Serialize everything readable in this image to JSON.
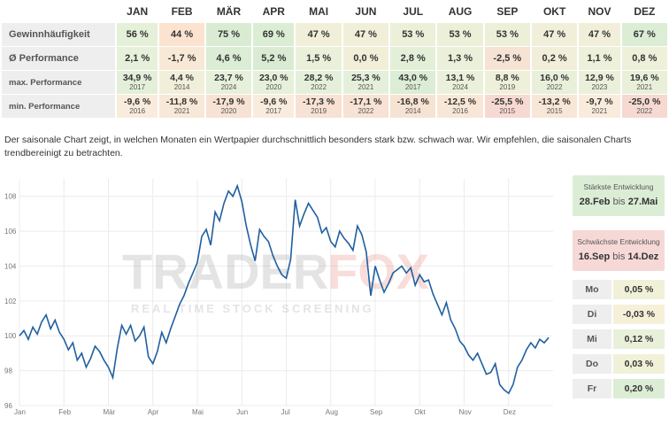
{
  "months": [
    "JAN",
    "FEB",
    "MÄR",
    "APR",
    "MAI",
    "JUN",
    "JUL",
    "AUG",
    "SEP",
    "OKT",
    "NOV",
    "DEZ"
  ],
  "rows": [
    {
      "label": "Gewinnhäufigkeit",
      "values": [
        "56 %",
        "44 %",
        "75 %",
        "69 %",
        "47 %",
        "47 %",
        "53 %",
        "53 %",
        "53 %",
        "47 %",
        "47 %",
        "67 %"
      ],
      "colors": [
        "#e5f0d9",
        "#fbe3cf",
        "#d9ecd3",
        "#dbedd4",
        "#f1efd9",
        "#f1efd9",
        "#ecf0d9",
        "#ecf0d9",
        "#ecf0d9",
        "#f1efd9",
        "#f1efd9",
        "#dcedd6"
      ]
    },
    {
      "label": "Ø Performance",
      "values": [
        "2,1 %",
        "-1,7 %",
        "4,6 %",
        "5,2 %",
        "1,5 %",
        "0,0 %",
        "2,8 %",
        "1,3 %",
        "-2,5 %",
        "0,2 %",
        "1,1 %",
        "0,8 %"
      ],
      "colors": [
        "#e7f0da",
        "#f8e9d6",
        "#dbedd4",
        "#d9ecd3",
        "#ebf0da",
        "#f2efd9",
        "#e4efd8",
        "#ebf0da",
        "#f7e3d4",
        "#f1efd9",
        "#edf0da",
        "#eff0da"
      ]
    },
    {
      "label": "max. Performance",
      "values": [
        "34,9 %",
        "4,4 %",
        "23,7 %",
        "23,0 %",
        "28,2 %",
        "25,3 %",
        "43,0 %",
        "13,1 %",
        "8,8 %",
        "16,0 %",
        "12,9 %",
        "19,6 %"
      ],
      "years": [
        "2017",
        "2014",
        "2024",
        "2020",
        "2022",
        "2021",
        "2017",
        "2024",
        "2019",
        "2022",
        "2023",
        "2021"
      ],
      "colors": [
        "#e3efd9",
        "#f1efd9",
        "#e6f0da",
        "#e6f0da",
        "#e5f0da",
        "#e5f0da",
        "#dbedd4",
        "#ebf0da",
        "#eef0da",
        "#e9f0da",
        "#ebf0da",
        "#e8f0da"
      ]
    },
    {
      "label": "min. Performance",
      "values": [
        "-9,6 %",
        "-11,8 %",
        "-17,9 %",
        "-9,6 %",
        "-17,3 %",
        "-17,1 %",
        "-16,8 %",
        "-12,5 %",
        "-25,5 %",
        "-13,2 %",
        "-9,7 %",
        "-25,0 %"
      ],
      "years": [
        "2016",
        "2021",
        "2020",
        "2017",
        "2019",
        "2022",
        "2014",
        "2016",
        "2015",
        "2015",
        "2021",
        "2022"
      ],
      "colors": [
        "#f9ecdc",
        "#f8e8d8",
        "#f7e2d4",
        "#f9ecdc",
        "#f7e2d4",
        "#f7e2d4",
        "#f7e3d4",
        "#f8e7d7",
        "#f6d9d1",
        "#f8e6d6",
        "#f9ecdc",
        "#f6d9d1"
      ]
    }
  ],
  "description": "Der saisonale Chart zeigt, in welchen Monaten ein Wertpapier durchschnittlich besonders stark bzw. schwach war. Wir empfehlen, die saisonalen Charts trendbereinigt zu betrachten.",
  "watermark": {
    "brand_left": "TRADER",
    "brand_right": "FOX",
    "tagline": "REAL TIME STOCK SCREENING"
  },
  "strongest": {
    "title": "Stärkste Entwicklung",
    "from": "28.Feb",
    "sep": "bis",
    "to": "27.Mai"
  },
  "weakest": {
    "title": "Schwächste Entwicklung",
    "from": "16.Sep",
    "sep": "bis",
    "to": "14.Dez"
  },
  "weekdays": [
    {
      "day": "Mo",
      "value": "0,05 %",
      "color": "#f1f1d9"
    },
    {
      "day": "Di",
      "value": "-0,03 %",
      "color": "#f6f0d9"
    },
    {
      "day": "Mi",
      "value": "0,12 %",
      "color": "#e9f0da"
    },
    {
      "day": "Do",
      "value": "0,03 %",
      "color": "#f1f1d9"
    },
    {
      "day": "Fr",
      "value": "0,20 %",
      "color": "#dcedd6"
    }
  ],
  "chart_data": {
    "type": "line",
    "x_ticks": [
      "Jan",
      "Feb",
      "Mär",
      "Apr",
      "Mai",
      "Jun",
      "Jul",
      "Aug",
      "Sep",
      "Okt",
      "Nov",
      "Dez"
    ],
    "y_ticks": [
      96,
      98,
      100,
      102,
      104,
      106,
      108
    ],
    "ylim": [
      96,
      109
    ],
    "grid": true,
    "line_color": "#1f5fa0",
    "series": [
      {
        "x_month": [
          0.0,
          0.1,
          0.2,
          0.3,
          0.4,
          0.5,
          0.6,
          0.7,
          0.8,
          0.9,
          1.0,
          1.1,
          1.2,
          1.3,
          1.4,
          1.5,
          1.6,
          1.7,
          1.8,
          1.9,
          2.0,
          2.1,
          2.2,
          2.3,
          2.4,
          2.5,
          2.6,
          2.7,
          2.8,
          2.9,
          3.0,
          3.1,
          3.2,
          3.3,
          3.4,
          3.5,
          3.6,
          3.7,
          3.8,
          3.9,
          4.0,
          4.1,
          4.2,
          4.3,
          4.4,
          4.5,
          4.6,
          4.7,
          4.8,
          4.9,
          5.0,
          5.1,
          5.2,
          5.3,
          5.4,
          5.5,
          5.6,
          5.7,
          5.8,
          5.9,
          6.0,
          6.1,
          6.2,
          6.3,
          6.4,
          6.5,
          6.6,
          6.7,
          6.8,
          6.9,
          7.0,
          7.1,
          7.2,
          7.3,
          7.4,
          7.5,
          7.6,
          7.7,
          7.8,
          7.9,
          8.0,
          8.1,
          8.2,
          8.3,
          8.4,
          8.5,
          8.6,
          8.7,
          8.8,
          8.9,
          9.0,
          9.1,
          9.2,
          9.3,
          9.4,
          9.5,
          9.6,
          9.7,
          9.8,
          9.9,
          10.0,
          10.1,
          10.2,
          10.3,
          10.4,
          10.5,
          10.6,
          10.7,
          10.8,
          10.9,
          11.0,
          11.1,
          11.2,
          11.3,
          11.4,
          11.5,
          11.6,
          11.7,
          11.8,
          11.9
        ],
        "values": [
          100.0,
          100.3,
          99.8,
          100.5,
          100.1,
          100.8,
          101.2,
          100.4,
          100.9,
          100.2,
          99.8,
          99.2,
          99.6,
          98.6,
          99.0,
          98.2,
          98.7,
          99.4,
          99.1,
          98.6,
          98.2,
          97.6,
          99.3,
          100.6,
          100.1,
          100.6,
          99.7,
          100.0,
          100.5,
          98.8,
          98.4,
          99.1,
          100.2,
          99.6,
          100.4,
          101.1,
          101.8,
          102.3,
          103.0,
          103.6,
          104.2,
          105.7,
          106.1,
          105.2,
          107.1,
          106.6,
          107.6,
          108.3,
          108.0,
          108.6,
          107.7,
          106.3,
          105.2,
          104.3,
          106.1,
          105.7,
          105.4,
          104.6,
          104.0,
          103.5,
          103.3,
          104.4,
          107.8,
          106.3,
          107.0,
          107.6,
          107.2,
          106.8,
          105.9,
          106.2,
          105.4,
          105.1,
          106.0,
          105.6,
          105.3,
          104.9,
          106.3,
          105.8,
          104.8,
          102.3,
          104.0,
          103.2,
          102.5,
          103.0,
          103.6,
          103.8,
          104.0,
          103.6,
          103.9,
          102.9,
          103.5,
          103.1,
          103.2,
          102.4,
          101.8,
          101.2,
          101.9,
          100.9,
          100.4,
          99.7,
          99.4,
          98.9,
          98.6,
          99.0,
          98.4,
          97.8,
          97.9,
          98.4,
          97.2,
          96.9,
          96.7,
          97.2,
          98.2,
          98.6,
          99.2,
          99.6,
          99.3,
          99.8,
          99.6,
          99.9
        ]
      }
    ]
  }
}
